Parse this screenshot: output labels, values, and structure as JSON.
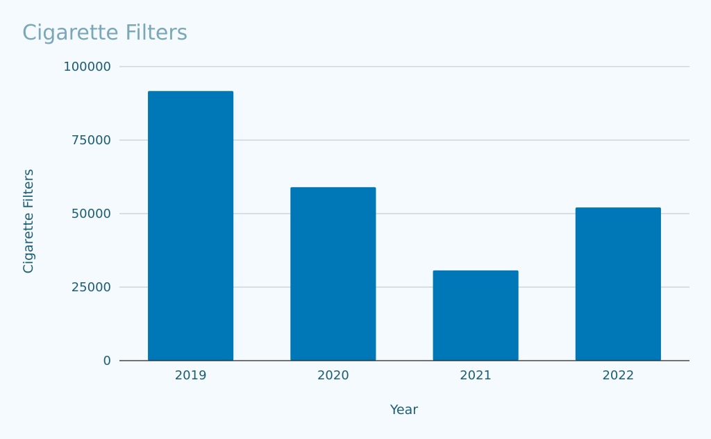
{
  "chart_data": {
    "type": "bar",
    "title": "Cigarette Filters",
    "xlabel": "Year",
    "ylabel": "Cigarette Filters",
    "categories": [
      "2019",
      "2020",
      "2021",
      "2022"
    ],
    "values": [
      91700,
      59000,
      30700,
      52100
    ],
    "ylim": [
      0,
      100000
    ],
    "yticks": [
      "0",
      "25000",
      "50000",
      "75000",
      "100000"
    ],
    "grid": true,
    "legend": "none",
    "colors": {
      "bar": "#0077b6",
      "title": "#7ba7b7",
      "axis_text": "#1c5d73",
      "gridline": "#c5cdd4",
      "background": "#f4fafe"
    }
  }
}
